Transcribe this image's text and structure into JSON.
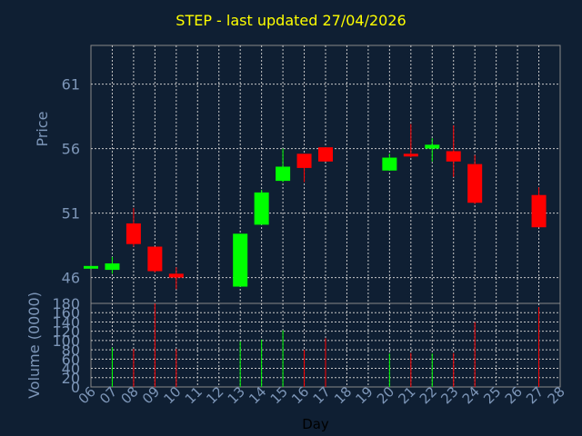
{
  "chart_data": [
    {
      "type": "candlestick",
      "title": "STEP - last updated 27/04/2026",
      "ylabel": "Price",
      "ylim": [
        44,
        64
      ],
      "yticks": [
        46,
        51,
        56,
        61
      ],
      "x_ticks": [
        "06",
        "07",
        "08",
        "09",
        "10",
        "11",
        "12",
        "13",
        "14",
        "15",
        "16",
        "17",
        "18",
        "19",
        "20",
        "21",
        "22",
        "23",
        "24",
        "25",
        "26",
        "27",
        "28"
      ],
      "grid": true,
      "colors": {
        "up": "#00ff00",
        "down": "#ff0000",
        "background": "#0f1f33",
        "axis_text": "#7d96b8",
        "title": "#ffff00",
        "grid": "#c8c8c8"
      },
      "candles": [
        {
          "day": 6,
          "open": 46.7,
          "close": 46.9,
          "high": 46.9,
          "low": 46.7
        },
        {
          "day": 7,
          "open": 46.6,
          "close": 47.1,
          "high": 47.6,
          "low": 46.3
        },
        {
          "day": 8,
          "open": 50.2,
          "close": 48.6,
          "high": 51.4,
          "low": 48.4
        },
        {
          "day": 9,
          "open": 48.4,
          "close": 46.5,
          "high": 48.4,
          "low": 46.4
        },
        {
          "day": 10,
          "open": 46.3,
          "close": 46.0,
          "high": 46.8,
          "low": 45.1
        },
        {
          "day": 13,
          "open": 45.3,
          "close": 49.4,
          "high": 49.4,
          "low": 45.3
        },
        {
          "day": 14,
          "open": 50.1,
          "close": 52.6,
          "high": 52.8,
          "low": 50.1
        },
        {
          "day": 15,
          "open": 53.5,
          "close": 54.6,
          "high": 56.0,
          "low": 53.4
        },
        {
          "day": 16,
          "open": 55.6,
          "close": 54.5,
          "high": 55.6,
          "low": 53.4
        },
        {
          "day": 17,
          "open": 56.1,
          "close": 55.0,
          "high": 56.1,
          "low": 55.0
        },
        {
          "day": 20,
          "open": 54.3,
          "close": 55.3,
          "high": 55.6,
          "low": 54.3
        },
        {
          "day": 21,
          "open": 55.6,
          "close": 55.4,
          "high": 57.9,
          "low": 55.3
        },
        {
          "day": 22,
          "open": 56.0,
          "close": 56.3,
          "high": 56.8,
          "low": 55.0
        },
        {
          "day": 23,
          "open": 55.8,
          "close": 55.0,
          "high": 57.8,
          "low": 53.8
        },
        {
          "day": 24,
          "open": 54.8,
          "close": 51.8,
          "high": 55.5,
          "low": 51.7
        },
        {
          "day": 27,
          "open": 52.4,
          "close": 49.9,
          "high": 53.0,
          "low": 49.9
        }
      ]
    },
    {
      "type": "bar",
      "ylabel": "Volume (0000)",
      "xlabel": "Day",
      "ylim": [
        0,
        180
      ],
      "yticks": [
        0,
        20,
        40,
        60,
        80,
        100,
        120,
        140,
        160,
        180
      ],
      "x_ticks": [
        "06",
        "07",
        "08",
        "09",
        "10",
        "11",
        "12",
        "13",
        "14",
        "15",
        "16",
        "17",
        "18",
        "19",
        "20",
        "21",
        "22",
        "23",
        "24",
        "25",
        "26",
        "27",
        "28"
      ],
      "bars": [
        {
          "day": 6,
          "value": 0,
          "dir": "up"
        },
        {
          "day": 7,
          "value": 85,
          "dir": "up"
        },
        {
          "day": 8,
          "value": 82,
          "dir": "down"
        },
        {
          "day": 9,
          "value": 180,
          "dir": "down"
        },
        {
          "day": 10,
          "value": 82,
          "dir": "down"
        },
        {
          "day": 13,
          "value": 98,
          "dir": "up"
        },
        {
          "day": 14,
          "value": 102,
          "dir": "up"
        },
        {
          "day": 15,
          "value": 122,
          "dir": "up"
        },
        {
          "day": 16,
          "value": 80,
          "dir": "down"
        },
        {
          "day": 17,
          "value": 105,
          "dir": "down"
        },
        {
          "day": 20,
          "value": 72,
          "dir": "up"
        },
        {
          "day": 21,
          "value": 73,
          "dir": "down"
        },
        {
          "day": 22,
          "value": 72,
          "dir": "up"
        },
        {
          "day": 23,
          "value": 73,
          "dir": "down"
        },
        {
          "day": 24,
          "value": 140,
          "dir": "down"
        },
        {
          "day": 27,
          "value": 172,
          "dir": "down"
        }
      ]
    }
  ]
}
